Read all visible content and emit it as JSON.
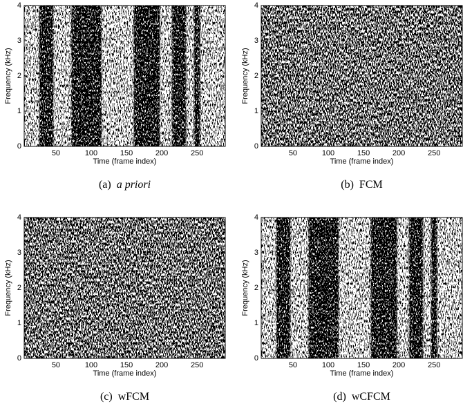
{
  "chart_data": [
    {
      "type": "heatmap",
      "label": "(a)",
      "caption": "a priori",
      "caption_italic": true,
      "xlabel": "Time (frame index)",
      "ylabel": "Frequency (kHz)",
      "xlim": [
        5,
        290
      ],
      "ylim": [
        0,
        4
      ],
      "xticks": [
        50,
        100,
        150,
        200,
        250
      ],
      "yticks": [
        0,
        1,
        2,
        3,
        4
      ]
    },
    {
      "type": "heatmap",
      "label": "(b)",
      "caption": "FCM",
      "caption_italic": false,
      "xlabel": "Time (frame index)",
      "ylabel": "Frequency (kHz)",
      "xlim": [
        5,
        290
      ],
      "ylim": [
        0,
        4
      ],
      "xticks": [
        50,
        100,
        150,
        200,
        250
      ],
      "yticks": [
        0,
        1,
        2,
        3,
        4
      ]
    },
    {
      "type": "heatmap",
      "label": "(c)",
      "caption": "wFCM",
      "caption_italic": false,
      "xlabel": "Time (frame index)",
      "ylabel": "Frequency (kHz)",
      "xlim": [
        5,
        290
      ],
      "ylim": [
        0,
        4
      ],
      "xticks": [
        50,
        100,
        150,
        200,
        250
      ],
      "yticks": [
        0,
        1,
        2,
        3,
        4
      ]
    },
    {
      "type": "heatmap",
      "label": "(d)",
      "caption": "wCFCM",
      "caption_italic": false,
      "xlabel": "Time (frame index)",
      "ylabel": "Frequency (kHz)",
      "xlim": [
        5,
        290
      ],
      "ylim": [
        0,
        4
      ],
      "xticks": [
        50,
        100,
        150,
        200,
        250
      ],
      "yticks": [
        0,
        1,
        2,
        3,
        4
      ]
    }
  ]
}
